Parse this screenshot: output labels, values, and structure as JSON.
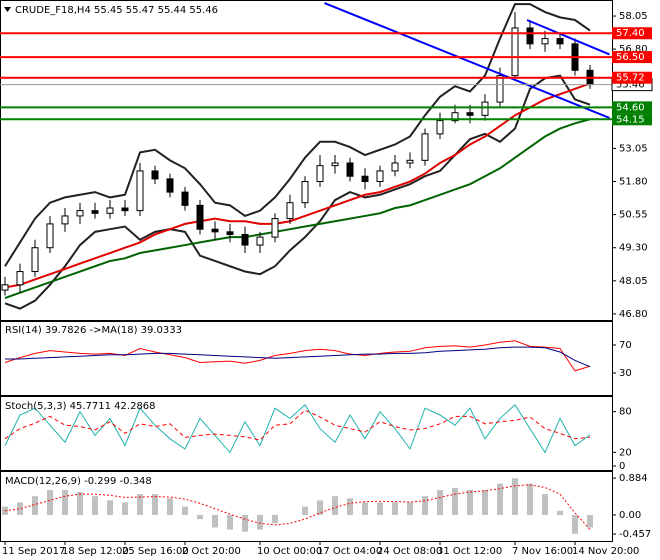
{
  "chart_data": [
    {
      "type": "candlestick",
      "title": "CRUDE_F18,H4 55.45 55.47 55.44 55.46",
      "categories": [
        "11 Sep 2017",
        null,
        null,
        null,
        "18 Sep 12:00",
        null,
        null,
        null,
        "25 Sep 16:00",
        null,
        null,
        null,
        "2 Oct 20:00",
        null,
        null,
        null,
        null,
        "10 Oct 00:00",
        null,
        null,
        null,
        "17 Oct 04:00",
        null,
        null,
        null,
        "24 Oct 08:00",
        null,
        null,
        null,
        "31 Oct 12:00",
        null,
        null,
        null,
        null,
        "7 Nov 16:00",
        null,
        null,
        null,
        "14 Nov 20:00",
        null
      ],
      "open": [
        47.7,
        47.9,
        48.4,
        49.3,
        50.2,
        50.5,
        50.7,
        50.6,
        50.8,
        50.7,
        52.2,
        51.9,
        51.4,
        50.9,
        50.0,
        49.9,
        49.8,
        49.4,
        49.7,
        50.4,
        51.0,
        51.8,
        52.4,
        52.5,
        52.0,
        51.8,
        52.2,
        52.5,
        52.6,
        53.6,
        54.1,
        54.4,
        54.3,
        54.8,
        55.8,
        57.6,
        57.0,
        57.2,
        57.0,
        56.0
      ],
      "high": [
        48.2,
        48.7,
        49.6,
        50.5,
        50.8,
        51.0,
        51.0,
        51.1,
        51.1,
        52.5,
        52.4,
        52.1,
        51.6,
        51.1,
        50.3,
        50.2,
        50.1,
        49.9,
        50.6,
        51.3,
        52.0,
        52.8,
        52.8,
        52.7,
        52.3,
        52.4,
        52.8,
        52.9,
        53.8,
        54.4,
        54.7,
        54.7,
        55.1,
        56.1,
        58.2,
        57.9,
        57.5,
        57.4,
        57.2,
        56.2
      ],
      "low": [
        47.5,
        47.6,
        48.2,
        49.1,
        49.9,
        50.2,
        50.4,
        50.4,
        50.5,
        50.5,
        51.7,
        51.2,
        50.7,
        49.8,
        49.6,
        49.5,
        49.1,
        49.1,
        49.5,
        50.2,
        50.8,
        51.6,
        52.1,
        51.8,
        51.5,
        51.6,
        52.0,
        52.3,
        52.4,
        53.4,
        54.0,
        54.0,
        54.1,
        54.6,
        55.6,
        56.8,
        56.7,
        56.8,
        55.8,
        55.3
      ],
      "close": [
        47.9,
        48.4,
        49.3,
        50.2,
        50.5,
        50.7,
        50.6,
        50.8,
        50.7,
        52.2,
        51.9,
        51.4,
        50.9,
        50.0,
        49.9,
        49.8,
        49.4,
        49.7,
        50.4,
        51.0,
        51.8,
        52.4,
        52.5,
        52.0,
        51.8,
        52.2,
        52.5,
        52.6,
        53.6,
        54.1,
        54.4,
        54.3,
        54.8,
        55.8,
        57.6,
        57.0,
        57.2,
        57.0,
        56.0,
        55.46
      ],
      "lines": [
        {
          "color": "#222222",
          "values": [
            48.6,
            49.5,
            50.4,
            51.0,
            51.2,
            51.3,
            51.4,
            51.2,
            51.3,
            52.9,
            53.0,
            52.6,
            52.3,
            51.7,
            51.0,
            50.9,
            50.5,
            50.7,
            51.2,
            51.9,
            52.7,
            53.3,
            53.3,
            53.1,
            52.8,
            53.0,
            53.2,
            53.5,
            54.3,
            55.0,
            55.4,
            55.2,
            55.8,
            57.2,
            58.5,
            58.5,
            58.2,
            58.0,
            57.9,
            57.5
          ]
        },
        {
          "color": "#222222",
          "values": [
            47.2,
            47.0,
            47.3,
            47.9,
            48.6,
            49.4,
            49.9,
            50.0,
            50.1,
            49.6,
            49.9,
            50.0,
            49.9,
            49.0,
            48.8,
            48.6,
            48.4,
            48.3,
            48.6,
            49.2,
            49.7,
            50.3,
            51.1,
            51.4,
            51.2,
            51.3,
            51.5,
            51.7,
            52.0,
            52.2,
            52.8,
            53.4,
            53.6,
            53.3,
            53.8,
            55.3,
            55.7,
            55.8,
            54.9,
            54.7
          ]
        },
        {
          "color": "#e00000",
          "values": [
            47.8,
            47.9,
            48.1,
            48.3,
            48.5,
            48.7,
            48.9,
            49.1,
            49.3,
            49.5,
            49.8,
            50.0,
            50.2,
            50.3,
            50.4,
            50.3,
            50.3,
            50.2,
            50.2,
            50.3,
            50.5,
            50.7,
            50.9,
            51.1,
            51.3,
            51.4,
            51.6,
            51.8,
            52.1,
            52.5,
            52.8,
            53.2,
            53.5,
            53.9,
            54.3,
            54.6,
            54.9,
            55.1,
            55.3,
            55.5
          ]
        },
        {
          "color": "#006400",
          "values": [
            47.4,
            47.6,
            47.8,
            48.0,
            48.2,
            48.4,
            48.6,
            48.8,
            48.9,
            49.1,
            49.2,
            49.3,
            49.4,
            49.5,
            49.6,
            49.7,
            49.7,
            49.8,
            49.9,
            50.0,
            50.1,
            50.2,
            50.3,
            50.4,
            50.5,
            50.6,
            50.8,
            50.9,
            51.1,
            51.3,
            51.5,
            51.7,
            52.0,
            52.3,
            52.7,
            53.1,
            53.5,
            53.8,
            54.0,
            54.15
          ]
        }
      ],
      "trendlines": [
        {
          "color": "#0000ff",
          "x": [
            21.3,
            40.3
          ],
          "y": [
            58.54,
            54.2
          ]
        },
        {
          "color": "#0000ff",
          "x": [
            34.8,
            40.3
          ],
          "y": [
            57.9,
            56.6
          ]
        }
      ],
      "levels": [
        {
          "value": 57.4,
          "label": "57.40",
          "color": "#ff0000"
        },
        {
          "value": 56.5,
          "label": "56.50",
          "color": "#ff0000"
        },
        {
          "value": 55.72,
          "label": "55.72",
          "color": "#ff0000"
        },
        {
          "value": 54.6,
          "label": "54.60",
          "color": "#008000"
        },
        {
          "value": 54.15,
          "label": "54.15",
          "color": "#008000"
        }
      ],
      "last_price": 55.46,
      "ylim": [
        46.57,
        58.58
      ],
      "yticks": [
        58.05,
        {
          "value": 56.8,
          "label": "56.80"
        },
        53.05,
        {
          "value": 51.8,
          "label": "51.80"
        },
        50.55,
        {
          "value": 49.3,
          "label": "49.30"
        },
        48.05,
        {
          "value": 46.8,
          "label": "46.80"
        }
      ]
    },
    {
      "type": "line",
      "title": "RSI(14) 39.7826 ->MA(18) 39.0333",
      "series": [
        {
          "color": "#ff0000",
          "values": [
            45,
            52,
            58,
            62,
            60,
            58,
            57,
            58,
            55,
            65,
            60,
            56,
            52,
            45,
            46,
            47,
            44,
            48,
            55,
            58,
            62,
            64,
            62,
            57,
            55,
            58,
            60,
            61,
            66,
            68,
            69,
            67,
            70,
            74,
            76,
            68,
            67,
            65,
            33,
            39.78
          ]
        },
        {
          "color": "#000080",
          "values": [
            50,
            50,
            51,
            52,
            53,
            54,
            55,
            56,
            56,
            57,
            58,
            58,
            57,
            56,
            55,
            54,
            53,
            52,
            51,
            52,
            53,
            54,
            55,
            56,
            57,
            57,
            58,
            58,
            59,
            61,
            62,
            63,
            64,
            66,
            67,
            67,
            66,
            60,
            48,
            39.03
          ]
        }
      ],
      "ylim": [
        0,
        100
      ],
      "yticks": [
        70,
        30
      ]
    },
    {
      "type": "line",
      "title": "Stoch(5,3,3) 45.7711 42.2868",
      "series": [
        {
          "color": "#20b2aa",
          "values": [
            30,
            75,
            85,
            60,
            35,
            80,
            45,
            70,
            30,
            85,
            60,
            40,
            25,
            70,
            45,
            20,
            65,
            30,
            85,
            70,
            90,
            55,
            35,
            75,
            40,
            80,
            55,
            25,
            85,
            75,
            60,
            85,
            40,
            70,
            90,
            55,
            20,
            70,
            30,
            45.77
          ]
        },
        {
          "color": "#ff0000",
          "style": "dashed",
          "values": [
            40,
            55,
            63,
            73,
            60,
            58,
            53,
            65,
            48,
            62,
            58,
            62,
            42,
            45,
            47,
            45,
            43,
            38,
            60,
            62,
            82,
            72,
            60,
            55,
            50,
            65,
            58,
            53,
            55,
            62,
            73,
            73,
            62,
            65,
            67,
            72,
            55,
            48,
            40,
            42.29
          ]
        }
      ],
      "ylim": [
        0,
        100
      ],
      "yticks": [
        80,
        20,
        0
      ]
    },
    {
      "type": "bar",
      "title": "MACD(12,26,9) -0.299 -0.348",
      "series": [
        {
          "color": "#c0c0c0",
          "values": [
            0.2,
            0.3,
            0.45,
            0.6,
            0.6,
            0.55,
            0.45,
            0.35,
            0.3,
            0.5,
            0.5,
            0.4,
            0.2,
            -0.1,
            -0.3,
            -0.35,
            -0.4,
            -0.35,
            -0.2,
            0.0,
            0.2,
            0.35,
            0.45,
            0.4,
            0.3,
            0.3,
            0.3,
            0.3,
            0.45,
            0.6,
            0.65,
            0.6,
            0.6,
            0.75,
            0.88,
            0.75,
            0.5,
            0.1,
            -0.45,
            -0.299
          ]
        },
        {
          "color": "#ff0000",
          "kind": "line",
          "style": "dotted",
          "values": [
            0.1,
            0.15,
            0.25,
            0.35,
            0.45,
            0.5,
            0.5,
            0.47,
            0.42,
            0.43,
            0.44,
            0.43,
            0.38,
            0.28,
            0.15,
            0.02,
            -0.1,
            -0.2,
            -0.24,
            -0.2,
            -0.1,
            0.05,
            0.18,
            0.28,
            0.32,
            0.33,
            0.32,
            0.31,
            0.34,
            0.42,
            0.5,
            0.55,
            0.58,
            0.63,
            0.7,
            0.72,
            0.66,
            0.5,
            0.05,
            -0.348
          ]
        }
      ],
      "ylim": [
        -0.6,
        1.03
      ],
      "yticks": [
        0.884,
        {
          "value": 0,
          "label": "0.00"
        },
        -0.457
      ]
    }
  ]
}
